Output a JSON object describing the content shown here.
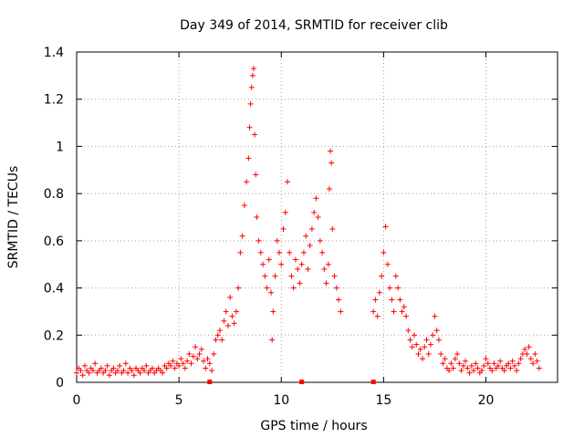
{
  "chart_data": {
    "type": "scatter",
    "title": "Day 349 of 2014, SRMTID for receiver clib",
    "xlabel": "GPS time / hours",
    "ylabel": "SRMTID / TECUs",
    "xlim": [
      0,
      23.5
    ],
    "ylim": [
      0,
      1.4
    ],
    "xticks": [
      0,
      5,
      10,
      15,
      20
    ],
    "xtick_labels": [
      "0",
      "5",
      "10",
      "15",
      "20"
    ],
    "yticks": [
      0,
      0.2,
      0.4,
      0.6,
      0.8,
      1.0,
      1.2,
      1.4
    ],
    "ytick_labels": [
      "0",
      "0.2",
      "0.4",
      "0.6",
      "0.8",
      "1",
      "1.2",
      "1.4"
    ],
    "grid": true,
    "marker": "+",
    "series_color": "#ff0000",
    "gap_markers_x": [
      6.5,
      11.0,
      14.5
    ],
    "series": [
      {
        "name": "SRMTID",
        "points": [
          [
            0.0,
            0.04
          ],
          [
            0.1,
            0.06
          ],
          [
            0.2,
            0.05
          ],
          [
            0.3,
            0.03
          ],
          [
            0.4,
            0.07
          ],
          [
            0.5,
            0.05
          ],
          [
            0.6,
            0.04
          ],
          [
            0.7,
            0.06
          ],
          [
            0.8,
            0.05
          ],
          [
            0.9,
            0.08
          ],
          [
            1.0,
            0.04
          ],
          [
            1.1,
            0.05
          ],
          [
            1.2,
            0.06
          ],
          [
            1.3,
            0.04
          ],
          [
            1.4,
            0.05
          ],
          [
            1.5,
            0.07
          ],
          [
            1.6,
            0.03
          ],
          [
            1.7,
            0.05
          ],
          [
            1.8,
            0.06
          ],
          [
            1.9,
            0.04
          ],
          [
            2.0,
            0.05
          ],
          [
            2.1,
            0.07
          ],
          [
            2.2,
            0.04
          ],
          [
            2.3,
            0.05
          ],
          [
            2.4,
            0.08
          ],
          [
            2.5,
            0.04
          ],
          [
            2.6,
            0.06
          ],
          [
            2.7,
            0.05
          ],
          [
            2.8,
            0.03
          ],
          [
            2.9,
            0.06
          ],
          [
            3.0,
            0.05
          ],
          [
            3.1,
            0.04
          ],
          [
            3.2,
            0.06
          ],
          [
            3.3,
            0.05
          ],
          [
            3.4,
            0.07
          ],
          [
            3.5,
            0.04
          ],
          [
            3.6,
            0.05
          ],
          [
            3.7,
            0.06
          ],
          [
            3.8,
            0.04
          ],
          [
            3.9,
            0.05
          ],
          [
            4.0,
            0.06
          ],
          [
            4.1,
            0.05
          ],
          [
            4.2,
            0.04
          ],
          [
            4.3,
            0.07
          ],
          [
            4.4,
            0.06
          ],
          [
            4.5,
            0.08
          ],
          [
            4.6,
            0.07
          ],
          [
            4.7,
            0.09
          ],
          [
            4.8,
            0.06
          ],
          [
            4.9,
            0.08
          ],
          [
            5.0,
            0.07
          ],
          [
            5.1,
            0.1
          ],
          [
            5.2,
            0.08
          ],
          [
            5.3,
            0.06
          ],
          [
            5.4,
            0.09
          ],
          [
            5.5,
            0.12
          ],
          [
            5.6,
            0.08
          ],
          [
            5.7,
            0.11
          ],
          [
            5.8,
            0.15
          ],
          [
            5.9,
            0.1
          ],
          [
            6.0,
            0.12
          ],
          [
            6.1,
            0.14
          ],
          [
            6.2,
            0.09
          ],
          [
            6.3,
            0.06
          ],
          [
            6.4,
            0.1
          ],
          [
            6.5,
            0.08
          ],
          [
            6.6,
            0.05
          ],
          [
            6.7,
            0.12
          ],
          [
            6.8,
            0.18
          ],
          [
            6.9,
            0.2
          ],
          [
            7.0,
            0.22
          ],
          [
            7.1,
            0.18
          ],
          [
            7.2,
            0.26
          ],
          [
            7.3,
            0.3
          ],
          [
            7.4,
            0.24
          ],
          [
            7.5,
            0.36
          ],
          [
            7.6,
            0.28
          ],
          [
            7.7,
            0.25
          ],
          [
            7.8,
            0.3
          ],
          [
            7.9,
            0.4
          ],
          [
            8.0,
            0.55
          ],
          [
            8.1,
            0.62
          ],
          [
            8.2,
            0.75
          ],
          [
            8.3,
            0.85
          ],
          [
            8.4,
            0.95
          ],
          [
            8.45,
            1.08
          ],
          [
            8.5,
            1.18
          ],
          [
            8.55,
            1.25
          ],
          [
            8.6,
            1.3
          ],
          [
            8.65,
            1.33
          ],
          [
            8.7,
            1.05
          ],
          [
            8.75,
            0.88
          ],
          [
            8.8,
            0.7
          ],
          [
            8.9,
            0.6
          ],
          [
            9.0,
            0.55
          ],
          [
            9.1,
            0.5
          ],
          [
            9.2,
            0.45
          ],
          [
            9.3,
            0.4
          ],
          [
            9.4,
            0.52
          ],
          [
            9.5,
            0.38
          ],
          [
            9.55,
            0.18
          ],
          [
            9.6,
            0.3
          ],
          [
            9.7,
            0.45
          ],
          [
            9.8,
            0.6
          ],
          [
            9.9,
            0.55
          ],
          [
            10.0,
            0.5
          ],
          [
            10.1,
            0.65
          ],
          [
            10.2,
            0.72
          ],
          [
            10.3,
            0.85
          ],
          [
            10.4,
            0.55
          ],
          [
            10.5,
            0.45
          ],
          [
            10.6,
            0.4
          ],
          [
            10.7,
            0.52
          ],
          [
            10.8,
            0.48
          ],
          [
            10.9,
            0.42
          ],
          [
            11.0,
            0.5
          ],
          [
            11.1,
            0.55
          ],
          [
            11.2,
            0.62
          ],
          [
            11.3,
            0.48
          ],
          [
            11.4,
            0.58
          ],
          [
            11.5,
            0.65
          ],
          [
            11.6,
            0.72
          ],
          [
            11.7,
            0.78
          ],
          [
            11.8,
            0.7
          ],
          [
            11.9,
            0.6
          ],
          [
            12.0,
            0.55
          ],
          [
            12.1,
            0.48
          ],
          [
            12.2,
            0.42
          ],
          [
            12.3,
            0.5
          ],
          [
            12.35,
            0.82
          ],
          [
            12.4,
            0.98
          ],
          [
            12.45,
            0.93
          ],
          [
            12.5,
            0.65
          ],
          [
            12.6,
            0.45
          ],
          [
            12.7,
            0.4
          ],
          [
            12.8,
            0.35
          ],
          [
            12.9,
            0.3
          ],
          [
            14.5,
            0.3
          ],
          [
            14.6,
            0.35
          ],
          [
            14.7,
            0.28
          ],
          [
            14.8,
            0.38
          ],
          [
            14.9,
            0.45
          ],
          [
            15.0,
            0.55
          ],
          [
            15.1,
            0.66
          ],
          [
            15.2,
            0.5
          ],
          [
            15.3,
            0.4
          ],
          [
            15.4,
            0.35
          ],
          [
            15.5,
            0.3
          ],
          [
            15.6,
            0.45
          ],
          [
            15.7,
            0.4
          ],
          [
            15.8,
            0.35
          ],
          [
            15.9,
            0.3
          ],
          [
            16.0,
            0.32
          ],
          [
            16.1,
            0.28
          ],
          [
            16.2,
            0.22
          ],
          [
            16.3,
            0.18
          ],
          [
            16.4,
            0.15
          ],
          [
            16.5,
            0.2
          ],
          [
            16.6,
            0.16
          ],
          [
            16.7,
            0.12
          ],
          [
            16.8,
            0.14
          ],
          [
            16.9,
            0.1
          ],
          [
            17.0,
            0.15
          ],
          [
            17.1,
            0.18
          ],
          [
            17.2,
            0.12
          ],
          [
            17.3,
            0.16
          ],
          [
            17.4,
            0.2
          ],
          [
            17.5,
            0.28
          ],
          [
            17.6,
            0.22
          ],
          [
            17.7,
            0.18
          ],
          [
            17.8,
            0.12
          ],
          [
            17.9,
            0.08
          ],
          [
            18.0,
            0.1
          ],
          [
            18.1,
            0.06
          ],
          [
            18.2,
            0.05
          ],
          [
            18.3,
            0.08
          ],
          [
            18.4,
            0.06
          ],
          [
            18.5,
            0.1
          ],
          [
            18.6,
            0.12
          ],
          [
            18.7,
            0.08
          ],
          [
            18.8,
            0.05
          ],
          [
            18.9,
            0.07
          ],
          [
            19.0,
            0.09
          ],
          [
            19.1,
            0.06
          ],
          [
            19.2,
            0.04
          ],
          [
            19.3,
            0.07
          ],
          [
            19.4,
            0.05
          ],
          [
            19.5,
            0.08
          ],
          [
            19.6,
            0.06
          ],
          [
            19.7,
            0.04
          ],
          [
            19.8,
            0.05
          ],
          [
            19.9,
            0.07
          ],
          [
            20.0,
            0.1
          ],
          [
            20.1,
            0.08
          ],
          [
            20.2,
            0.06
          ],
          [
            20.3,
            0.05
          ],
          [
            20.4,
            0.08
          ],
          [
            20.5,
            0.06
          ],
          [
            20.6,
            0.07
          ],
          [
            20.7,
            0.09
          ],
          [
            20.8,
            0.06
          ],
          [
            20.9,
            0.05
          ],
          [
            21.0,
            0.07
          ],
          [
            21.1,
            0.08
          ],
          [
            21.2,
            0.06
          ],
          [
            21.3,
            0.09
          ],
          [
            21.4,
            0.07
          ],
          [
            21.5,
            0.05
          ],
          [
            21.6,
            0.08
          ],
          [
            21.7,
            0.1
          ],
          [
            21.8,
            0.12
          ],
          [
            21.9,
            0.14
          ],
          [
            22.0,
            0.12
          ],
          [
            22.1,
            0.15
          ],
          [
            22.2,
            0.1
          ],
          [
            22.3,
            0.08
          ],
          [
            22.4,
            0.12
          ],
          [
            22.5,
            0.09
          ],
          [
            22.6,
            0.06
          ]
        ]
      }
    ]
  }
}
